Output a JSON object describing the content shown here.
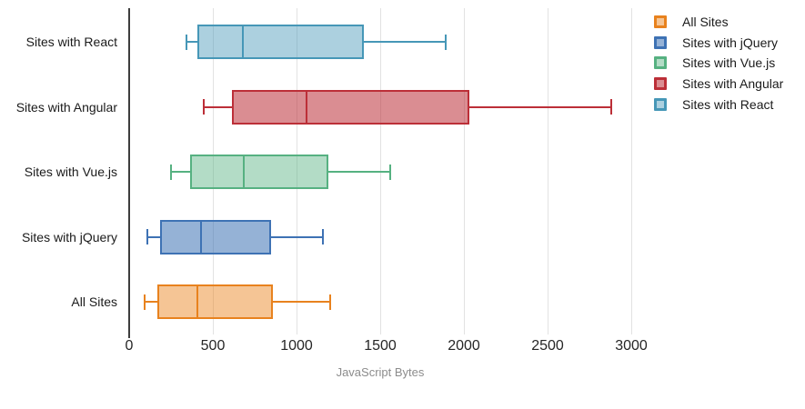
{
  "chart_data": {
    "type": "boxplot",
    "orientation": "horizontal",
    "title": "",
    "xlabel": "JavaScript Bytes",
    "x_ticks": [
      0,
      500,
      1000,
      1500,
      2000,
      2500,
      3000
    ],
    "xlim": [
      0,
      3100
    ],
    "grid": "vertical-lines",
    "legend_position": "top-right",
    "series": [
      {
        "label": "All Sites",
        "stroke": "#E8821E",
        "fill": "rgba(232,126,21,0.45)",
        "values": {
          "min": 90,
          "q1": 170,
          "median": 410,
          "q3": 860,
          "max": 1200
        }
      },
      {
        "label": "Sites with jQuery",
        "stroke": "#3E72B4",
        "fill": "rgba(62,114,180,0.55)",
        "values": {
          "min": 110,
          "q1": 185,
          "median": 430,
          "q3": 850,
          "max": 1160
        }
      },
      {
        "label": "Sites with Vue.js",
        "stroke": "#56B181",
        "fill": "rgba(86,177,129,0.45)",
        "values": {
          "min": 250,
          "q1": 365,
          "median": 685,
          "q3": 1190,
          "max": 1560
        }
      },
      {
        "label": "Sites with Angular",
        "stroke": "#BC2F38",
        "fill": "rgba(188,47,56,0.55)",
        "values": {
          "min": 445,
          "q1": 615,
          "median": 1060,
          "q3": 2030,
          "max": 2880
        }
      },
      {
        "label": "Sites with React",
        "stroke": "#4697B7",
        "fill": "rgba(70,151,183,0.45)",
        "values": {
          "min": 340,
          "q1": 410,
          "median": 680,
          "q3": 1400,
          "max": 1890
        }
      }
    ],
    "row_order_top_to_bottom": [
      "Sites with React",
      "Sites with Angular",
      "Sites with Vue.js",
      "Sites with jQuery",
      "All Sites"
    ]
  }
}
